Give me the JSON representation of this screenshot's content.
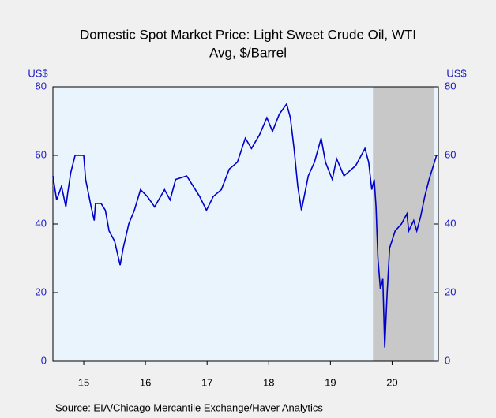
{
  "chart_data": {
    "type": "line",
    "title": "Domestic Spot Market Price: Light Sweet Crude Oil, WTI",
    "subtitle": "Avg, $/Barrel",
    "y_label": "US$",
    "y2_label": "US$",
    "source": "Source:  EIA/Chicago Mercantile Exchange/Haver Analytics",
    "x": [
      2015.0,
      2015.06,
      2015.14,
      2015.21,
      2015.24,
      2015.29,
      2015.36,
      2015.5,
      2015.53,
      2015.62,
      2015.67,
      2015.69,
      2015.78,
      2015.85,
      2015.91,
      2016.0,
      2016.09,
      2016.14,
      2016.23,
      2016.32,
      2016.42,
      2016.53,
      2016.65,
      2016.81,
      2016.9,
      2016.99,
      2017.17,
      2017.38,
      2017.49,
      2017.6,
      2017.73,
      2017.86,
      2017.99,
      2018.12,
      2018.22,
      2018.35,
      2018.47,
      2018.56,
      2018.67,
      2018.79,
      2018.85,
      2018.91,
      2018.97,
      2019.03,
      2019.14,
      2019.24,
      2019.35,
      2019.42,
      2019.53,
      2019.6,
      2019.72,
      2019.91,
      2020.06,
      2020.12,
      2020.17,
      2020.21,
      2020.24,
      2020.27,
      2020.31,
      2020.35,
      2020.38,
      2020.42,
      2020.46,
      2020.55,
      2020.65,
      2020.74,
      2020.77,
      2020.85,
      2020.9,
      2020.96,
      2021.03,
      2021.1,
      2021.22
    ],
    "series": [
      {
        "name": "WTI",
        "color": "#0000c8",
        "values": [
          54,
          47,
          51,
          45,
          49,
          55,
          60,
          60,
          53,
          45,
          41,
          46,
          46,
          44,
          38,
          35,
          28,
          33,
          40,
          44,
          50,
          48,
          45,
          50,
          47,
          53,
          54,
          48,
          44,
          48,
          50,
          56,
          58,
          65,
          62,
          66,
          71,
          67,
          72,
          75,
          71,
          62,
          51,
          44,
          54,
          58,
          65,
          58,
          53,
          59,
          54,
          57,
          62,
          58,
          50,
          53,
          45,
          30,
          21,
          24,
          4,
          20,
          33,
          38,
          40,
          43,
          38,
          41,
          38,
          42,
          48,
          53,
          60
        ]
      }
    ],
    "xlim": [
      2015,
      2021.25
    ],
    "xticks": [
      {
        "value": 2015.5,
        "label": "15"
      },
      {
        "value": 2016.5,
        "label": "16"
      },
      {
        "value": 2017.5,
        "label": "17"
      },
      {
        "value": 2018.5,
        "label": "18"
      },
      {
        "value": 2019.5,
        "label": "19"
      },
      {
        "value": 2020.5,
        "label": "20"
      }
    ],
    "ylim": [
      0,
      80
    ],
    "yticks": [
      0,
      20,
      40,
      60,
      80
    ],
    "y2lim": [
      0,
      80
    ],
    "y2ticks": [
      0,
      20,
      40,
      60,
      80
    ],
    "shade": [
      2020.19,
      2021.18
    ],
    "shade_color": "#c8c8c8"
  }
}
